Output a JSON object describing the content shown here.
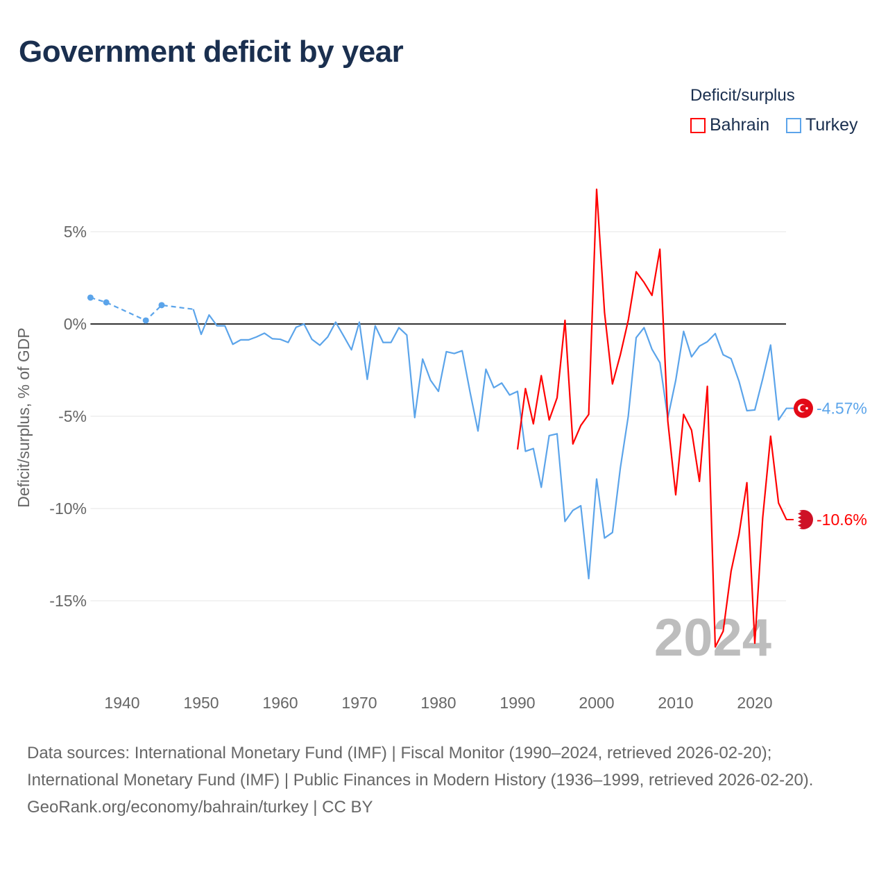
{
  "title": "Government deficit by year",
  "legend": {
    "title": "Deficit/surplus",
    "items": [
      {
        "name": "Bahrain",
        "color": "#ff0000"
      },
      {
        "name": "Turkey",
        "color": "#5ba4ea"
      }
    ]
  },
  "year_watermark": "2024",
  "end_labels": {
    "turkey": "-4.57%",
    "bahrain": "-10.6%"
  },
  "footer": {
    "sources": "Data sources: International Monetary Fund (IMF) | Fiscal Monitor (1990–2024, retrieved 2026-02-20); International Monetary Fund (IMF) | Public Finances in Modern History (1936–1999, retrieved 2026-02-20).",
    "credit": "GeoRank.org/economy/bahrain/turkey | CC BY"
  },
  "chart_data": {
    "type": "line",
    "title": "Government deficit by year",
    "xlabel": "",
    "ylabel": "Deficit/surplus, % of GDP",
    "xlim": [
      1936,
      2024
    ],
    "ylim": [
      -19,
      8
    ],
    "xticks": [
      1940,
      1950,
      1960,
      1970,
      1980,
      1990,
      2000,
      2010,
      2020
    ],
    "xtick_labels": [
      "1940",
      "1950",
      "1960",
      "1970",
      "1980",
      "1990",
      "2000",
      "2010",
      "2020"
    ],
    "yticks": [
      5,
      0,
      -5,
      -10,
      -15
    ],
    "ytick_labels": [
      "5%",
      "0%",
      "-5%",
      "-10%",
      "-15%"
    ],
    "grid": true,
    "legend_position": "top-right",
    "series": [
      {
        "name": "Turkey",
        "color": "#5ba4ea",
        "sparse_points": [
          [
            1936,
            1.43
          ],
          [
            1938,
            1.17
          ],
          [
            1943,
            0.19
          ],
          [
            1945,
            1.02
          ],
          [
            1949,
            0.8
          ]
        ],
        "x": [
          1949,
          1950,
          1951,
          1952,
          1953,
          1954,
          1955,
          1956,
          1957,
          1958,
          1959,
          1960,
          1961,
          1962,
          1963,
          1964,
          1965,
          1966,
          1967,
          1968,
          1969,
          1970,
          1971,
          1972,
          1973,
          1974,
          1975,
          1976,
          1977,
          1978,
          1979,
          1980,
          1981,
          1982,
          1983,
          1984,
          1985,
          1986,
          1987,
          1988,
          1989,
          1990,
          1991,
          1992,
          1993,
          1994,
          1995,
          1996,
          1997,
          1998,
          1999,
          2000,
          2001,
          2002,
          2003,
          2004,
          2005,
          2006,
          2007,
          2008,
          2009,
          2010,
          2011,
          2012,
          2013,
          2014,
          2015,
          2016,
          2017,
          2018,
          2019,
          2020,
          2021,
          2022,
          2023,
          2024
        ],
        "values": [
          0.8,
          -0.56,
          0.49,
          -0.1,
          -0.1,
          -1.1,
          -0.86,
          -0.86,
          -0.7,
          -0.5,
          -0.8,
          -0.83,
          -1.0,
          -0.18,
          0.0,
          -0.83,
          -1.15,
          -0.7,
          0.1,
          -0.64,
          -1.4,
          0.1,
          -3.0,
          -0.1,
          -1.0,
          -1.0,
          -0.2,
          -0.6,
          -5.07,
          -1.9,
          -3.05,
          -3.65,
          -1.5,
          -1.6,
          -1.45,
          -3.7,
          -5.8,
          -2.45,
          -3.45,
          -3.2,
          -3.85,
          -3.65,
          -6.9,
          -6.75,
          -8.85,
          -6.05,
          -5.95,
          -10.7,
          -10.1,
          -9.85,
          -13.8,
          -8.4,
          -11.6,
          -11.3,
          -7.8,
          -5.0,
          -0.74,
          -0.2,
          -1.37,
          -2.1,
          -5.1,
          -3.06,
          -0.4,
          -1.78,
          -1.2,
          -0.96,
          -0.52,
          -1.67,
          -1.88,
          -3.1,
          -4.7,
          -4.66,
          -2.97,
          -1.14,
          -5.2,
          -4.57
        ]
      },
      {
        "name": "Bahrain",
        "color": "#ff0000",
        "x": [
          1990,
          1991,
          1992,
          1993,
          1994,
          1995,
          1996,
          1997,
          1998,
          1999,
          2000,
          2001,
          2002,
          2003,
          2004,
          2005,
          2006,
          2007,
          2008,
          2009,
          2010,
          2011,
          2012,
          2013,
          2014,
          2015,
          2016,
          2017,
          2018,
          2019,
          2020,
          2021,
          2022,
          2023,
          2024
        ],
        "values": [
          -6.8,
          -3.5,
          -5.41,
          -2.8,
          -5.2,
          -4.0,
          0.2,
          -6.5,
          -5.5,
          -4.9,
          7.3,
          0.62,
          -3.25,
          -1.67,
          0.2,
          2.83,
          2.25,
          1.55,
          4.05,
          -5.26,
          -9.26,
          -4.9,
          -5.75,
          -8.53,
          -3.38,
          -17.5,
          -16.65,
          -13.4,
          -11.4,
          -8.6,
          -17.3,
          -10.5,
          -6.08,
          -9.7,
          -10.6
        ]
      }
    ]
  }
}
